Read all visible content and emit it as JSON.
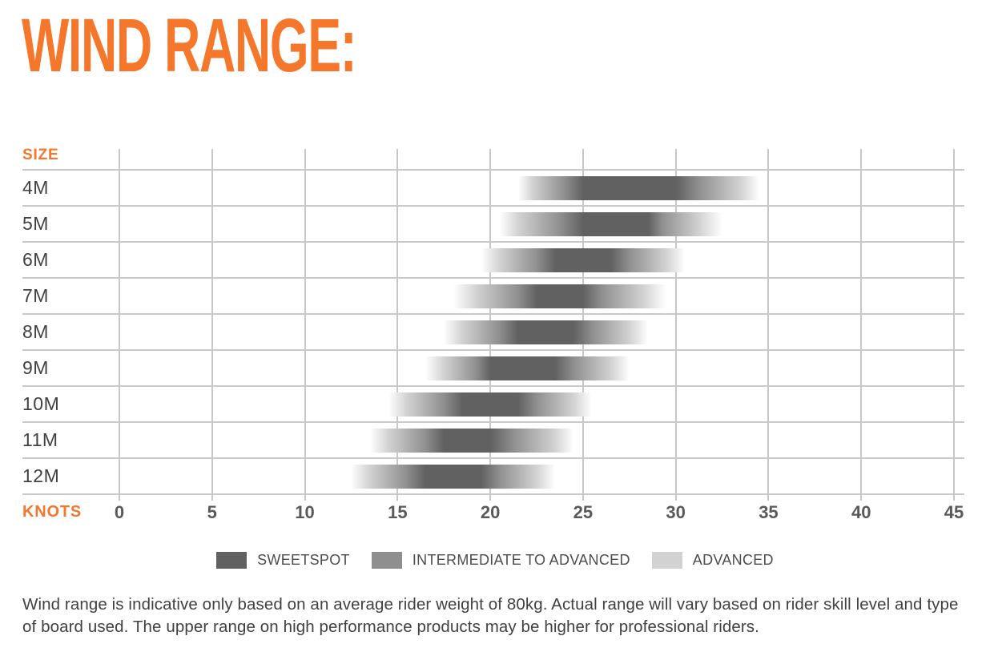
{
  "title": "WIND RANGE:",
  "colors": {
    "accent_orange": "#f5772b",
    "gridline": "#c8c8c8",
    "tick_text": "#58595b",
    "row_label_text": "#414042",
    "sweetspot": "#616161",
    "intermediate": "#8f8f8f",
    "advanced": "#d2d2d2"
  },
  "chart_data": {
    "type": "bar",
    "subtype": "horizontal-range-bars-with-gradient",
    "title": "WIND RANGE:",
    "x_axis": {
      "label": "KNOTS",
      "min": 0,
      "max": 45,
      "ticks": [
        0,
        5,
        10,
        15,
        20,
        25,
        30,
        35,
        40,
        45
      ]
    },
    "y_axis": {
      "label": "SIZE"
    },
    "grid": true,
    "categories": [
      "4M",
      "5M",
      "6M",
      "7M",
      "8M",
      "9M",
      "10M",
      "11M",
      "12M"
    ],
    "rows": [
      {
        "size": "4M",
        "advanced": [
          21.5,
          34.5
        ],
        "intermediate": [
          23.0,
          32.5
        ],
        "sweetspot": [
          25.0,
          30.0
        ]
      },
      {
        "size": "5M",
        "advanced": [
          20.5,
          32.5
        ],
        "intermediate": [
          22.5,
          30.0
        ],
        "sweetspot": [
          25.0,
          28.5
        ]
      },
      {
        "size": "6M",
        "advanced": [
          19.5,
          30.5
        ],
        "intermediate": [
          21.5,
          28.5
        ],
        "sweetspot": [
          23.5,
          26.5
        ]
      },
      {
        "size": "7M",
        "advanced": [
          18.0,
          29.5
        ],
        "intermediate": [
          20.5,
          27.0
        ],
        "sweetspot": [
          22.5,
          25.0
        ]
      },
      {
        "size": "8M",
        "advanced": [
          17.5,
          28.5
        ],
        "intermediate": [
          19.5,
          26.5
        ],
        "sweetspot": [
          21.5,
          24.5
        ]
      },
      {
        "size": "9M",
        "advanced": [
          16.5,
          27.5
        ],
        "intermediate": [
          18.5,
          25.5
        ],
        "sweetspot": [
          20.0,
          23.5
        ]
      },
      {
        "size": "10M",
        "advanced": [
          14.5,
          25.5
        ],
        "intermediate": [
          16.5,
          23.5
        ],
        "sweetspot": [
          18.5,
          21.5
        ]
      },
      {
        "size": "11M",
        "advanced": [
          13.5,
          24.5
        ],
        "intermediate": [
          15.5,
          22.5
        ],
        "sweetspot": [
          17.5,
          20.0
        ]
      },
      {
        "size": "12M",
        "advanced": [
          12.5,
          23.5
        ],
        "intermediate": [
          14.5,
          21.5
        ],
        "sweetspot": [
          16.5,
          19.5
        ]
      }
    ],
    "legend": [
      {
        "label": "SWEETSPOT",
        "color": "#616161"
      },
      {
        "label": "INTERMEDIATE TO ADVANCED",
        "color": "#8f8f8f"
      },
      {
        "label": "ADVANCED",
        "color": "#d2d2d2"
      }
    ],
    "legend_position": "bottom-center"
  },
  "footer": {
    "text": "Wind range is indicative only based on an average rider weight of 80kg. Actual range will vary based on rider skill level and type of board used. The upper range on high performance products may be higher for professional riders."
  }
}
